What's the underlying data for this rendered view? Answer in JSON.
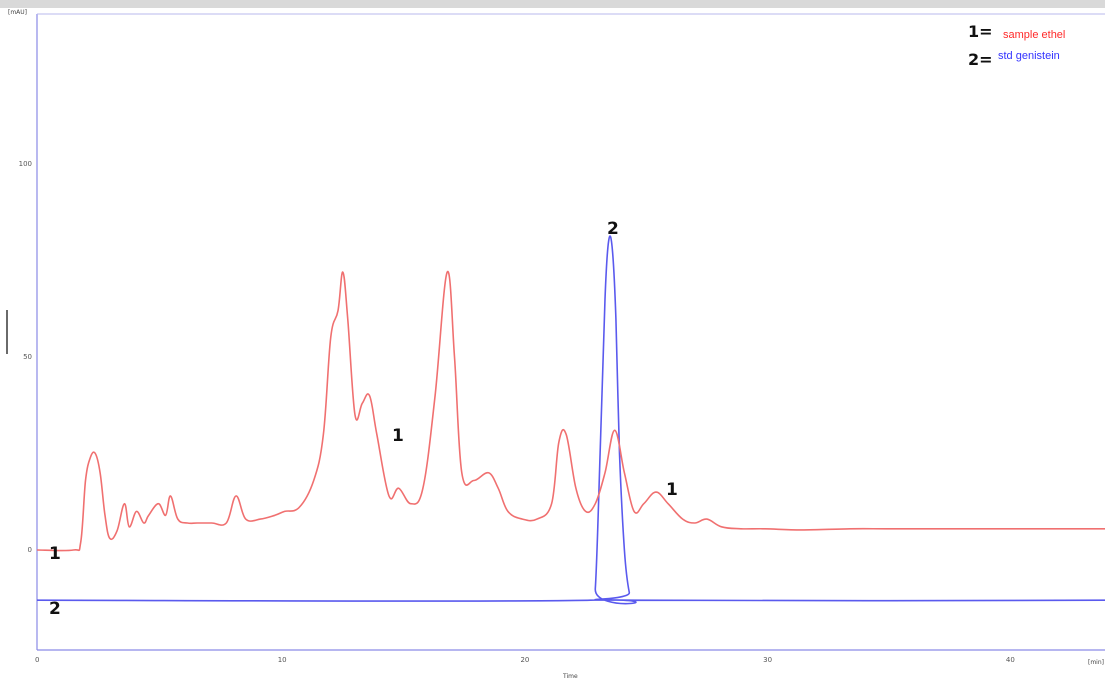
{
  "chart_data": {
    "type": "line",
    "title": "",
    "xlabel": "Time",
    "ylabel": "",
    "y_unit": "[mAU]",
    "x_unit": "[min]",
    "xlim": [
      0,
      44
    ],
    "ylim": [
      -25,
      140
    ],
    "x_ticks": [
      "0",
      "10",
      "20",
      "30",
      "40"
    ],
    "y_ticks": [
      "0",
      "50",
      "100"
    ],
    "grid": false,
    "legend_position": "top-right",
    "legend": [
      {
        "number": "1=",
        "label": "sample ethel",
        "color": "#ff2a2a"
      },
      {
        "number": "2=",
        "label": "std genistein",
        "color": "#3333ff"
      }
    ],
    "annotations": [
      "1",
      "2",
      "1",
      "2",
      "1"
    ],
    "series": [
      {
        "name": "sample ethel",
        "color": "#f07070",
        "x": [
          0,
          1.5,
          1.8,
          2.0,
          2.2,
          2.4,
          2.6,
          2.8,
          3.0,
          3.3,
          3.6,
          3.8,
          4.1,
          4.4,
          4.6,
          5.0,
          5.3,
          5.5,
          5.8,
          6.2,
          6.6,
          7.2,
          7.8,
          8.2,
          8.6,
          9.2,
          9.8,
          10.2,
          10.8,
          11.4,
          11.8,
          12.1,
          12.4,
          12.6,
          12.8,
          13.1,
          13.4,
          13.7,
          14.0,
          14.5,
          14.9,
          15.4,
          15.9,
          16.4,
          16.9,
          17.2,
          17.5,
          18.0,
          18.6,
          19.0,
          19.4,
          20.0,
          20.6,
          21.2,
          21.5,
          21.8,
          22.2,
          22.6,
          23.0,
          23.4,
          23.8,
          24.2,
          24.6,
          25.0,
          25.5,
          26.0,
          26.6,
          27.1,
          27.6,
          28.2,
          29.0,
          30.0,
          31.5,
          33.5,
          35.0,
          37.0,
          40.0,
          44.0
        ],
        "y": [
          0,
          0,
          2,
          18,
          24,
          25,
          20,
          9,
          3,
          5,
          12,
          6,
          10,
          7,
          9,
          12,
          9,
          14,
          8,
          7,
          7,
          7,
          7,
          14,
          8,
          8,
          9,
          10,
          11,
          18,
          30,
          55,
          62,
          72,
          60,
          35,
          38,
          40,
          30,
          14,
          16,
          12,
          16,
          40,
          72,
          50,
          20,
          18,
          20,
          16,
          10,
          8,
          8,
          12,
          28,
          30,
          16,
          10,
          12,
          20,
          31,
          20,
          10,
          12,
          15,
          12,
          8,
          7,
          8,
          6,
          5.5,
          5.5,
          5.2,
          5.5,
          5.5,
          5.5,
          5.5,
          5.5
        ]
      },
      {
        "name": "std genistein",
        "color": "#5a5aee",
        "x": [
          0,
          22.8,
          23.0,
          23.2,
          23.4,
          23.55,
          23.7,
          23.85,
          24.0,
          24.2,
          24.4,
          24.6,
          44.0
        ],
        "y": [
          -13,
          -13,
          -10,
          25,
          65,
          80,
          78,
          60,
          25,
          0,
          -11,
          -13,
          -13
        ]
      }
    ]
  }
}
